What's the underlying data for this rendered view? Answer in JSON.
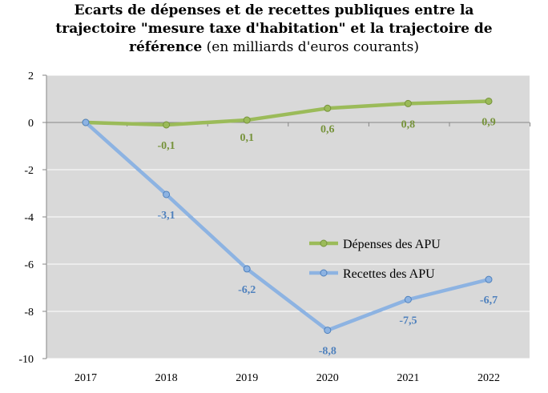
{
  "title": {
    "line1": "Ecarts de dépenses et de recettes publiques entre la",
    "line2": "trajectoire \"mesure taxe d'habitation\" et la trajectoire de",
    "line3_bold": "référence",
    "line3_light": "(en milliards d'euros courants)"
  },
  "chart_data": {
    "type": "line",
    "title": "Ecarts de dépenses et de recettes publiques entre la trajectoire \"mesure taxe d'habitation\" et la trajectoire de référence (en milliards d'euros courants)",
    "xlabel": "",
    "ylabel": "",
    "categories": [
      "2017",
      "2018",
      "2019",
      "2020",
      "2021",
      "2022"
    ],
    "ylim": [
      -10,
      2
    ],
    "yticks": [
      2,
      0,
      -2,
      -4,
      -6,
      -8,
      -10
    ],
    "ytick_labels": [
      "2",
      "0",
      "-2",
      "-4",
      "-6",
      "-8",
      "-10"
    ],
    "grid": true,
    "legend_position": "right",
    "series": [
      {
        "name": "Dépenses des APU",
        "color": "#9bbb59",
        "label_color": "#77933c",
        "values": [
          0,
          -0.1,
          0.1,
          0.6,
          0.8,
          0.9
        ],
        "data_labels": [
          null,
          "-0,1",
          "0,1",
          "0,6",
          "0,8",
          "0,9"
        ]
      },
      {
        "name": "Recettes des APU",
        "color": "#8db3e2",
        "label_color": "#4f81bd",
        "values": [
          0,
          -3.05,
          -6.2,
          -8.8,
          -7.5,
          -6.65
        ],
        "data_labels": [
          null,
          "-3,1",
          "-6,2",
          "-8,8",
          "-7,5",
          "-6,7"
        ]
      }
    ]
  }
}
